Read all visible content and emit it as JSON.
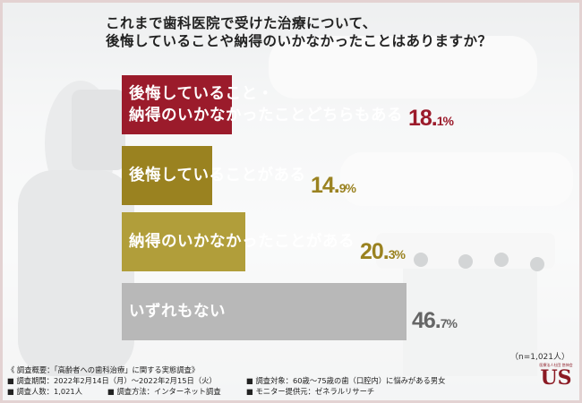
{
  "question": {
    "line1": "これまで歯科医院で受けた治療について、",
    "line2": "後悔していることや納得のいかなかったことはありますか？"
  },
  "chart_data": {
    "type": "bar",
    "orientation": "horizontal",
    "categories": [
      "後悔していること・納得のいかなかったことどちらもある",
      "後悔していることがある",
      "納得のいかなかったことがある",
      "いずれもない"
    ],
    "values": [
      18.1,
      14.9,
      20.3,
      46.7
    ],
    "colors": [
      "#9b1b2b",
      "#9a8220",
      "#b19e3a",
      "#b8b8b8"
    ],
    "label_lines": [
      [
        "後悔していること・",
        "納得のいかなかったことどちらもある"
      ],
      [
        "後悔していることがある"
      ],
      [
        "納得のいかなかったことがある"
      ],
      [
        "いずれもない"
      ]
    ],
    "value_labels": [
      [
        "18.",
        "1%"
      ],
      [
        "14.",
        "9%"
      ],
      [
        "20.",
        "3%"
      ],
      [
        "46.",
        "7%"
      ]
    ],
    "value_colors": [
      "#9b1b2b",
      "#9a8220",
      "#9a8220",
      "#666666"
    ]
  },
  "sample_note": "（n=1,021人）",
  "footer": {
    "title": "《 調査概要：「高齢者への歯科治療」に関する実態調査》",
    "period": "■ 調査期間：2022年2月14日（月）〜2022年2月15日（火）",
    "count": "■ 調査人数：1,021人",
    "method": "■ 調査方法：インターネット調査",
    "target": "■ 調査対象：60歳〜75歳の歯（口腔内）に悩みがある男女",
    "provider": "■ モニター提供元：ゼネラルリサーチ"
  },
  "logo": {
    "small_text": "医療法人社団 悠伸会",
    "big_text": "US"
  }
}
